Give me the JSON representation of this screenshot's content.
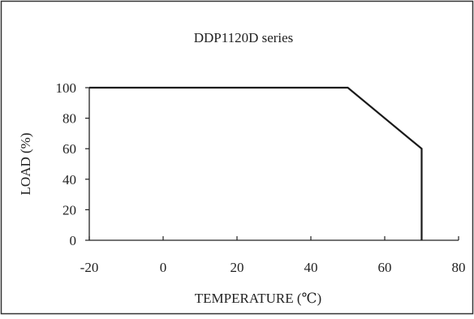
{
  "chart_data": {
    "type": "line",
    "title": "DDP1120D series",
    "xlabel": "TEMPERATURE (℃)",
    "ylabel": "LOAD (%)",
    "xlim": [
      -20,
      80
    ],
    "ylim": [
      0,
      100
    ],
    "x_ticks": [
      "-20",
      "0",
      "20",
      "40",
      "60",
      "80"
    ],
    "y_ticks": [
      "0",
      "20",
      "40",
      "60",
      "80",
      "100"
    ],
    "grid": false,
    "series": [
      {
        "x": [
          -20,
          50,
          70,
          70
        ],
        "y": [
          100,
          100,
          60,
          0
        ]
      }
    ],
    "colors": {
      "line": "#1a1a1a",
      "axis": "#222222",
      "frame": "#333333"
    }
  }
}
